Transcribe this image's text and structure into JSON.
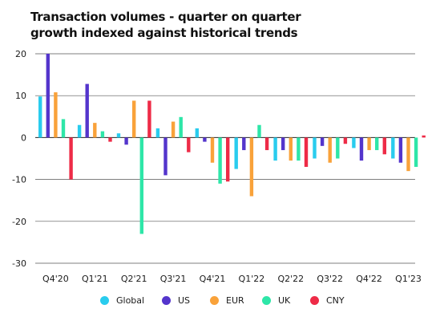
{
  "chart_data": {
    "type": "bar",
    "title_lines": [
      "Transaction volumes - quarter on quarter",
      "growth indexed against historical trends"
    ],
    "categories": [
      "Q4'20",
      "Q1'21",
      "Q2'21",
      "Q3'21",
      "Q4'21",
      "Q1'22",
      "Q2'22",
      "Q3'22",
      "Q4'22",
      "Q1'23"
    ],
    "series": [
      {
        "name": "Global",
        "color": "#29CCEE",
        "values": [
          9.8,
          3,
          1,
          2.2,
          2.2,
          -7.5,
          -5.5,
          -5,
          -2.5,
          -5
        ]
      },
      {
        "name": "US",
        "color": "#5435CC",
        "values": [
          20,
          12.8,
          -1.7,
          -9,
          -1,
          -3,
          -3,
          -2,
          -5.5,
          -6
        ]
      },
      {
        "name": "EUR",
        "color": "#F9A23A",
        "values": [
          10.8,
          3.5,
          8.8,
          3.8,
          -6,
          -14,
          -5.5,
          -6,
          -3,
          -8
        ]
      },
      {
        "name": "UK",
        "color": "#2EE6A8",
        "values": [
          4.4,
          1.5,
          -23,
          4.9,
          -11,
          3,
          -5.5,
          -5,
          -3,
          -7
        ]
      },
      {
        "name": "CNY",
        "color": "#EE2B47",
        "values": [
          -10,
          -1,
          8.8,
          -3.5,
          -10.5,
          -3,
          -7,
          -1.5,
          -4,
          0.5
        ]
      }
    ],
    "yticks": [
      20,
      10,
      0,
      -10,
      -20,
      -30
    ],
    "ylim": [
      -30,
      20
    ],
    "grid": true,
    "legend_position": "bottom"
  }
}
